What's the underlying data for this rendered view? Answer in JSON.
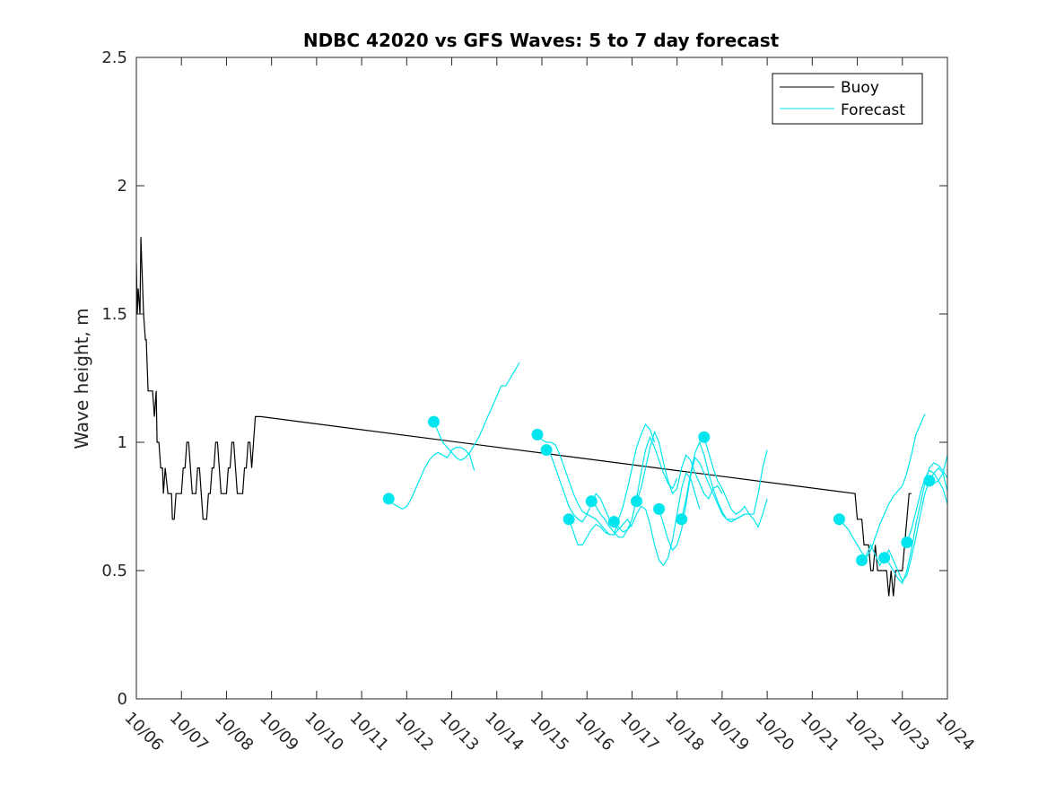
{
  "chart_data": {
    "type": "line",
    "title": "NDBC 42020 vs GFS Waves: 5 to 7 day forecast",
    "xlabel": "",
    "ylabel": "Wave height, m",
    "xlim": [
      0,
      18
    ],
    "ylim": [
      0,
      2.5
    ],
    "x_tick_values": [
      0,
      1,
      2,
      3,
      4,
      5,
      6,
      7,
      8,
      9,
      10,
      11,
      12,
      13,
      14,
      15,
      16,
      17,
      18
    ],
    "x_tick_labels": [
      "10/06",
      "10/07",
      "10/08",
      "10/09",
      "10/10",
      "10/11",
      "10/12",
      "10/13",
      "10/14",
      "10/15",
      "10/16",
      "10/17",
      "10/18",
      "10/19",
      "10/20",
      "10/21",
      "10/22",
      "10/23",
      "10/24"
    ],
    "y_tick_values": [
      0,
      0.5,
      1,
      1.5,
      2,
      2.5
    ],
    "y_tick_labels": [
      "0",
      "0.5",
      "1",
      "1.5",
      "2",
      "2.5"
    ],
    "legend": {
      "position": "top-right",
      "entries": [
        "Buoy",
        "Forecast"
      ]
    },
    "colors": {
      "buoy": "#000000",
      "forecast": "#00e5ee",
      "axis": "#262626"
    },
    "series": [
      {
        "name": "Buoy",
        "x": [
          0.0,
          0.02,
          0.04,
          0.08,
          0.1,
          0.14,
          0.16,
          0.2,
          0.22,
          0.26,
          0.28,
          0.32,
          0.36,
          0.4,
          0.44,
          0.46,
          0.5,
          0.54,
          0.58,
          0.6,
          0.64,
          0.7,
          0.74,
          0.78,
          0.8,
          0.84,
          0.88,
          0.92,
          0.96,
          1.0,
          1.04,
          1.08,
          1.12,
          1.16,
          1.2,
          1.24,
          1.28,
          1.32,
          1.36,
          1.4,
          1.44,
          1.48,
          1.52,
          1.56,
          1.6,
          1.64,
          1.68,
          1.72,
          1.76,
          1.8,
          1.84,
          1.88,
          1.92,
          1.96,
          2.0,
          2.04,
          2.08,
          2.12,
          2.16,
          2.2,
          2.24,
          2.28,
          2.32,
          2.36,
          2.4,
          2.44,
          2.48,
          2.52,
          2.56,
          2.6,
          2.64,
          2.68,
          2.72,
          2.76,
          15.95,
          16.0,
          16.05,
          16.1,
          16.15,
          16.2,
          16.25,
          16.3,
          16.35,
          16.4,
          16.45,
          16.5,
          16.55,
          16.6,
          16.65,
          16.7,
          16.75,
          16.8,
          16.85,
          16.9,
          16.95,
          17.0,
          17.05,
          17.1,
          17.15,
          17.2
        ],
        "y": [
          1.7,
          1.5,
          1.6,
          1.5,
          1.8,
          1.6,
          1.5,
          1.4,
          1.4,
          1.2,
          1.2,
          1.2,
          1.2,
          1.1,
          1.2,
          1.0,
          1.0,
          0.9,
          0.9,
          0.8,
          0.9,
          0.8,
          0.8,
          0.8,
          0.7,
          0.7,
          0.8,
          0.8,
          0.8,
          0.8,
          0.9,
          0.9,
          1.0,
          1.0,
          0.9,
          0.8,
          0.8,
          0.8,
          0.9,
          0.9,
          0.8,
          0.7,
          0.7,
          0.7,
          0.8,
          0.8,
          0.9,
          0.9,
          1.0,
          1.0,
          0.9,
          0.8,
          0.8,
          0.8,
          0.8,
          0.9,
          0.9,
          1.0,
          1.0,
          0.9,
          0.8,
          0.8,
          0.8,
          0.8,
          0.9,
          0.9,
          1.0,
          1.0,
          0.9,
          1.0,
          1.1,
          1.1,
          1.1,
          1.1,
          0.8,
          0.7,
          0.7,
          0.7,
          0.6,
          0.6,
          0.6,
          0.5,
          0.5,
          0.6,
          0.5,
          0.5,
          0.5,
          0.5,
          0.5,
          0.4,
          0.5,
          0.4,
          0.5,
          0.5,
          0.5,
          0.5,
          0.6,
          0.7,
          0.8,
          0.8
        ]
      },
      {
        "name": "Forecast",
        "lines": [
          {
            "x": [
              5.6,
              5.7,
              5.8,
              5.9,
              6.0,
              6.1,
              6.2,
              6.3,
              6.4,
              6.5,
              6.6,
              6.7,
              6.8,
              6.9,
              7.0,
              7.1,
              7.2,
              7.3,
              7.4,
              7.5
            ],
            "y": [
              0.78,
              0.76,
              0.75,
              0.74,
              0.75,
              0.78,
              0.82,
              0.86,
              0.9,
              0.93,
              0.95,
              0.96,
              0.95,
              0.94,
              0.97,
              0.98,
              0.98,
              0.97,
              0.95,
              0.89
            ]
          },
          {
            "x": [
              6.6,
              6.7,
              6.8,
              6.9,
              7.0,
              7.1,
              7.2,
              7.3,
              7.4,
              7.5,
              7.6,
              7.7,
              7.8,
              7.9,
              8.0,
              8.1,
              8.2,
              8.3,
              8.4,
              8.5
            ],
            "y": [
              1.08,
              1.04,
              1.0,
              0.98,
              0.96,
              0.94,
              0.93,
              0.94,
              0.96,
              0.99,
              1.02,
              1.06,
              1.1,
              1.14,
              1.18,
              1.22,
              1.22,
              1.25,
              1.28,
              1.31
            ]
          },
          {
            "x": [
              8.9,
              9.0,
              9.1,
              9.2,
              9.3,
              9.4,
              9.5,
              9.6,
              9.7,
              9.8,
              9.9,
              10.0,
              10.1,
              10.2,
              10.3,
              10.4,
              10.5,
              10.6,
              10.7,
              10.8
            ],
            "y": [
              1.03,
              1.01,
              1.0,
              1.0,
              0.99,
              0.95,
              0.9,
              0.85,
              0.8,
              0.76,
              0.73,
              0.72,
              0.71,
              0.7,
              0.68,
              0.66,
              0.64,
              0.64,
              0.66,
              0.68
            ]
          },
          {
            "x": [
              9.1,
              9.2,
              9.3,
              9.4,
              9.5,
              9.6,
              9.7,
              9.8,
              9.9,
              10.0,
              10.1,
              10.2,
              10.3,
              10.4,
              10.5,
              10.6,
              10.7,
              10.8,
              10.9,
              11.0
            ],
            "y": [
              0.97,
              0.95,
              0.9,
              0.85,
              0.8,
              0.75,
              0.72,
              0.7,
              0.69,
              0.72,
              0.76,
              0.8,
              0.78,
              0.74,
              0.7,
              0.68,
              0.66,
              0.68,
              0.7,
              0.67
            ]
          },
          {
            "x": [
              9.6,
              9.7,
              9.8,
              9.9,
              10.0,
              10.1,
              10.2,
              10.3,
              10.4,
              10.5,
              10.6,
              10.7,
              10.8,
              10.9,
              11.0,
              11.1,
              11.2,
              11.3,
              11.4,
              11.5
            ],
            "y": [
              0.7,
              0.65,
              0.6,
              0.6,
              0.63,
              0.66,
              0.68,
              0.67,
              0.65,
              0.64,
              0.64,
              0.7,
              0.75,
              0.82,
              0.9,
              0.98,
              1.03,
              1.07,
              1.05,
              1.0
            ]
          },
          {
            "x": [
              10.1,
              10.2,
              10.3,
              10.4,
              10.5,
              10.6,
              10.7,
              10.8,
              10.9,
              11.0,
              11.1,
              11.2,
              11.3,
              11.4,
              11.5,
              11.6,
              11.7,
              11.8,
              11.9,
              12.0
            ],
            "y": [
              0.77,
              0.75,
              0.72,
              0.7,
              0.67,
              0.65,
              0.63,
              0.63,
              0.66,
              0.7,
              0.78,
              0.88,
              0.97,
              1.02,
              0.98,
              0.93,
              0.88,
              0.84,
              0.82,
              0.86
            ]
          },
          {
            "x": [
              10.6,
              10.7,
              10.8,
              10.9,
              11.0,
              11.1,
              11.2,
              11.3,
              11.4,
              11.5,
              11.6,
              11.7,
              11.8,
              11.9,
              12.0,
              12.1,
              12.2,
              12.3,
              12.4,
              12.5
            ],
            "y": [
              0.69,
              0.67,
              0.65,
              0.66,
              0.68,
              0.72,
              0.75,
              0.74,
              0.68,
              0.6,
              0.54,
              0.52,
              0.55,
              0.62,
              0.72,
              0.82,
              0.88,
              0.86,
              0.8,
              0.74
            ]
          },
          {
            "x": [
              11.1,
              11.2,
              11.3,
              11.4,
              11.5,
              11.6,
              11.7,
              11.8,
              11.9,
              12.0,
              12.1,
              12.2,
              12.3,
              12.4,
              12.5,
              12.6,
              12.7,
              12.8,
              12.9,
              13.0
            ],
            "y": [
              0.77,
              0.82,
              0.9,
              0.98,
              1.04,
              1.0,
              0.92,
              0.85,
              0.8,
              0.82,
              0.9,
              0.95,
              0.93,
              0.88,
              0.84,
              0.8,
              0.78,
              0.82,
              0.83,
              0.8
            ]
          },
          {
            "x": [
              11.6,
              11.7,
              11.8,
              11.9,
              12.0,
              12.1,
              12.2,
              12.3,
              12.4,
              12.5,
              12.6,
              12.7,
              12.8,
              12.9,
              13.0,
              13.1,
              13.2,
              13.3,
              13.4,
              13.5
            ],
            "y": [
              0.74,
              0.68,
              0.62,
              0.58,
              0.6,
              0.66,
              0.76,
              0.87,
              0.94,
              0.92,
              0.88,
              0.84,
              0.8,
              0.76,
              0.72,
              0.7,
              0.7,
              0.7,
              0.71,
              0.72
            ]
          },
          {
            "x": [
              12.1,
              12.2,
              12.3,
              12.4,
              12.5,
              12.6,
              12.7,
              12.8,
              12.9,
              13.0,
              13.1,
              13.2,
              13.3,
              13.4,
              13.5,
              13.6,
              13.7,
              13.8,
              13.9,
              14.0
            ],
            "y": [
              0.7,
              0.78,
              0.88,
              0.96,
              1.0,
              0.95,
              0.88,
              0.82,
              0.77,
              0.73,
              0.7,
              0.69,
              0.7,
              0.71,
              0.72,
              0.72,
              0.72,
              0.8,
              0.9,
              0.97
            ]
          },
          {
            "x": [
              12.6,
              12.7,
              12.8,
              12.9,
              13.0,
              13.1,
              13.2,
              13.3,
              13.4,
              13.5,
              13.6,
              13.7,
              13.8,
              13.9,
              14.0
            ],
            "y": [
              1.02,
              0.96,
              0.9,
              0.85,
              0.82,
              0.78,
              0.74,
              0.72,
              0.73,
              0.75,
              0.72,
              0.7,
              0.67,
              0.72,
              0.78
            ]
          },
          {
            "x": [
              15.6,
              15.7,
              15.8,
              15.9,
              16.0,
              16.1,
              16.2,
              16.3,
              16.4,
              16.5,
              16.6,
              16.7,
              16.8,
              16.9,
              17.0,
              17.1,
              17.2,
              17.3,
              17.4,
              17.5
            ],
            "y": [
              0.7,
              0.68,
              0.66,
              0.63,
              0.6,
              0.57,
              0.55,
              0.58,
              0.63,
              0.68,
              0.72,
              0.76,
              0.79,
              0.81,
              0.83,
              0.88,
              0.95,
              1.03,
              1.07,
              1.11
            ]
          },
          {
            "x": [
              16.1,
              16.2,
              16.3,
              16.4,
              16.5,
              16.6,
              16.7,
              16.8,
              16.9,
              17.0,
              17.1,
              17.2,
              17.3,
              17.4,
              17.5,
              17.6,
              17.7,
              17.8,
              17.9,
              18.0
            ],
            "y": [
              0.54,
              0.56,
              0.6,
              0.56,
              0.52,
              0.55,
              0.58,
              0.54,
              0.5,
              0.46,
              0.48,
              0.55,
              0.63,
              0.72,
              0.8,
              0.85,
              0.88,
              0.9,
              0.88,
              0.81
            ]
          },
          {
            "x": [
              16.6,
              16.7,
              16.8,
              16.9,
              17.0,
              17.1,
              17.2,
              17.3,
              17.4,
              17.5,
              17.6,
              17.7,
              17.8,
              17.9,
              18.0
            ],
            "y": [
              0.55,
              0.53,
              0.5,
              0.47,
              0.45,
              0.5,
              0.58,
              0.68,
              0.76,
              0.84,
              0.9,
              0.92,
              0.91,
              0.89,
              0.86
            ]
          },
          {
            "x": [
              17.1,
              17.2,
              17.3,
              17.4,
              17.5,
              17.6,
              17.7,
              17.8,
              17.9,
              18.0
            ],
            "y": [
              0.61,
              0.66,
              0.73,
              0.8,
              0.86,
              0.89,
              0.88,
              0.85,
              0.82,
              0.76
            ]
          },
          {
            "x": [
              17.6,
              17.7,
              17.8,
              17.9,
              18.0
            ],
            "y": [
              0.85,
              0.84,
              0.85,
              0.88,
              0.95
            ]
          }
        ]
      }
    ],
    "markers": {
      "series": "Forecast",
      "x": [
        5.6,
        6.6,
        8.9,
        9.1,
        9.6,
        10.1,
        10.6,
        11.1,
        11.6,
        12.1,
        12.6,
        15.6,
        16.1,
        16.6,
        17.1,
        17.6
      ],
      "y": [
        0.78,
        1.08,
        1.03,
        0.97,
        0.7,
        0.77,
        0.69,
        0.77,
        0.74,
        0.7,
        1.02,
        0.7,
        0.54,
        0.55,
        0.61,
        0.85
      ]
    }
  }
}
